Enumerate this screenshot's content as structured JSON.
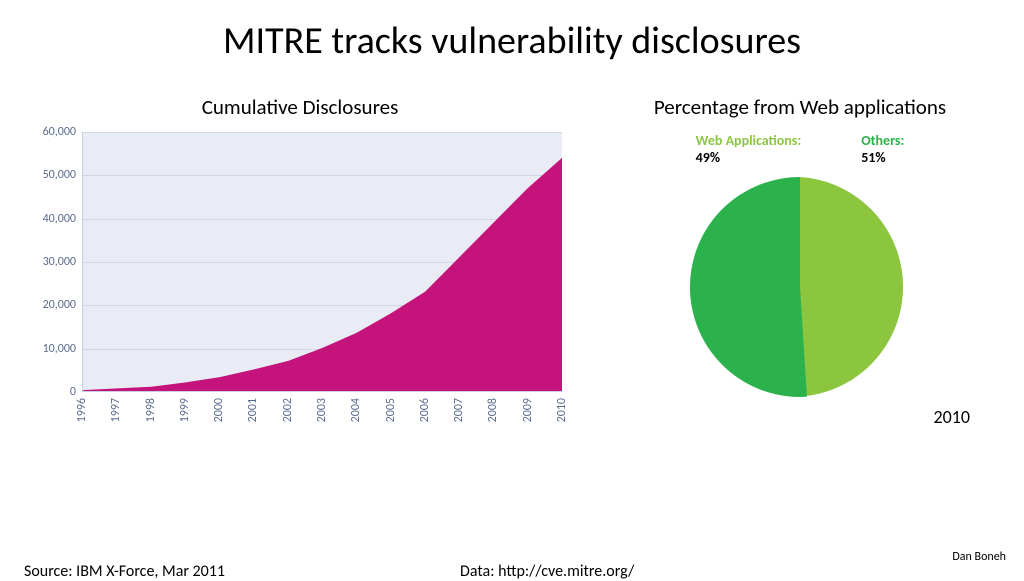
{
  "title": "MITRE tracks vulnerability disclosures",
  "area_chart": {
    "type": "area",
    "title": "Cumulative Disclosures",
    "x_labels": [
      "1996",
      "1997",
      "1998",
      "1999",
      "2000",
      "2001",
      "2002",
      "2003",
      "2004",
      "2005",
      "2006",
      "2007",
      "2008",
      "2009",
      "2010"
    ],
    "y_ticks": [
      0,
      10000,
      20000,
      30000,
      40000,
      50000,
      60000
    ],
    "y_tick_labels": [
      "0",
      "10,000",
      "20,000",
      "30,000",
      "40,000",
      "50,000",
      "60,000"
    ],
    "ylim": [
      0,
      60000
    ],
    "values": [
      200,
      600,
      1000,
      2000,
      3200,
      5000,
      7000,
      10000,
      13500,
      18000,
      23000,
      31000,
      39000,
      47000,
      54000
    ],
    "fill_color": "#c4147b",
    "plot_bg": "#e9ecf5",
    "grid_color": "#cfd6e6",
    "axis_label_color": "#5a6b8c",
    "tick_fontsize": 12
  },
  "pie_chart": {
    "type": "pie",
    "title": "Percentage from Web applications",
    "slices": [
      {
        "name": "Web Applications:",
        "value": 49,
        "color": "#8cc63f",
        "label_color": "#8cc63f"
      },
      {
        "name": "Others:",
        "value": 51,
        "color": "#2bb24c",
        "label_color": "#2bb24c"
      }
    ],
    "year": "2010",
    "radius": 110,
    "legend_fontsize": 14
  },
  "footer": {
    "source": "Source: IBM X-Force, Mar 2011",
    "data": "Data: http://cve.mitre.org/",
    "author": "Dan Boneh"
  }
}
